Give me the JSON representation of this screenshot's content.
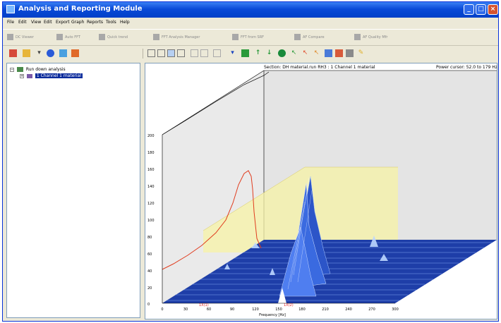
{
  "window": {
    "title": "Analysis and Reporting Module",
    "controls": {
      "minimize": "_",
      "maximize": "□",
      "close": "×"
    }
  },
  "menu": [
    "File",
    "Edit",
    "View",
    "Edit",
    "Export",
    "Graph",
    "Reports",
    "Tools",
    "Help"
  ],
  "toolbar1": [
    {
      "label": "DC Viewer"
    },
    {
      "label": "Auto FFT"
    },
    {
      "label": "Quick trend"
    },
    {
      "label": "FFT Analysis Manager"
    },
    {
      "label": "FFT from SRF"
    },
    {
      "label": "AF Compare"
    },
    {
      "label": "AF Quality Mfr"
    }
  ],
  "tree": {
    "root_label": "Run down analysis",
    "child_label": "1 Channel 1 material"
  },
  "plot": {
    "section_label": "Section: DH material.run RH3 : 1 Channel 1 material",
    "power_label": "Power cursor: 52.0 to 179 Hz",
    "x_axis_label": "Frequency [Hz]",
    "y_ticks": [
      "200",
      "180",
      "160",
      "140",
      "120",
      "100",
      "80",
      "60",
      "40",
      "20",
      "0"
    ],
    "x_ticks": [
      "0",
      "30",
      "60",
      "90",
      "120",
      "150",
      "180",
      "210",
      "240",
      "270",
      "300"
    ],
    "markers": [
      "1X(1)",
      "1X(2)"
    ]
  },
  "colors": {
    "title_bar": "#0a4ad8",
    "trace_red": "#e03c1e",
    "trace_black": "#000000",
    "floor": "#1e3ea8",
    "cursor_band": "#f7f3a6",
    "highlight": "#0b2b9c"
  },
  "icons": {
    "app": "app-icon",
    "tree_root": "folder-tree-icon",
    "tree_child": "channel-icon"
  }
}
